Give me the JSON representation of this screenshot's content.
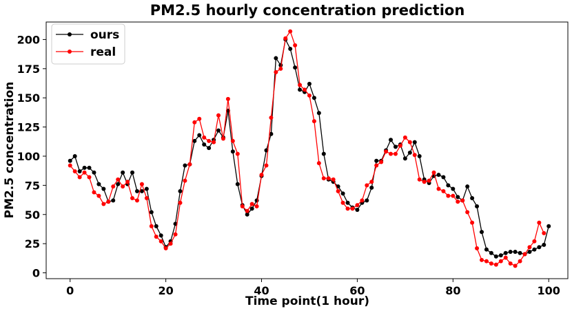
{
  "chart_data": {
    "type": "line",
    "title": "PM2.5 hourly concentration prediction",
    "xlabel": "Time point(1 hour)",
    "ylabel": "PM2.5 concentration",
    "xlim": [
      -5,
      104
    ],
    "ylim": [
      -5,
      215
    ],
    "xticks": [
      0,
      20,
      40,
      60,
      80,
      100
    ],
    "yticks": [
      0,
      25,
      50,
      75,
      100,
      125,
      150,
      175,
      200
    ],
    "grid": false,
    "legend_position": "top-left",
    "series": [
      {
        "name": "ours",
        "color": "#000000",
        "values": [
          96,
          100,
          87,
          90,
          90,
          86,
          76,
          72,
          61,
          62,
          76,
          86,
          76,
          86,
          70,
          70,
          72,
          52,
          40,
          32,
          22,
          27,
          42,
          70,
          92,
          93,
          113,
          118,
          110,
          107,
          114,
          122,
          116,
          139,
          104,
          76,
          58,
          50,
          55,
          62,
          83,
          105,
          119,
          184,
          178,
          200,
          192,
          176,
          157,
          155,
          162,
          150,
          137,
          102,
          80,
          78,
          74,
          68,
          60,
          56,
          54,
          60,
          62,
          73,
          96,
          96,
          105,
          114,
          108,
          110,
          98,
          103,
          112,
          100,
          80,
          77,
          83,
          84,
          82,
          75,
          72,
          65,
          62,
          74,
          64,
          57,
          35,
          20,
          17,
          14,
          15,
          17,
          18,
          18,
          17,
          16,
          18,
          20,
          22,
          24,
          40
        ]
      },
      {
        "name": "real",
        "color": "#ff0000",
        "values": [
          92,
          87,
          82,
          86,
          82,
          69,
          66,
          59,
          61,
          74,
          80,
          74,
          78,
          64,
          62,
          76,
          64,
          40,
          31,
          27,
          21,
          25,
          33,
          60,
          79,
          93,
          129,
          132,
          116,
          113,
          112,
          135,
          115,
          149,
          113,
          102,
          57,
          53,
          59,
          57,
          84,
          92,
          133,
          172,
          175,
          201,
          207,
          195,
          161,
          157,
          152,
          130,
          94,
          81,
          81,
          80,
          70,
          60,
          55,
          55,
          58,
          62,
          75,
          78,
          92,
          95,
          104,
          102,
          102,
          109,
          116,
          112,
          101,
          80,
          78,
          79,
          86,
          72,
          70,
          66,
          66,
          61,
          62,
          52,
          43,
          21,
          11,
          10,
          8,
          7,
          10,
          13,
          8,
          6,
          10,
          16,
          22,
          27,
          43,
          34
        ]
      }
    ]
  }
}
